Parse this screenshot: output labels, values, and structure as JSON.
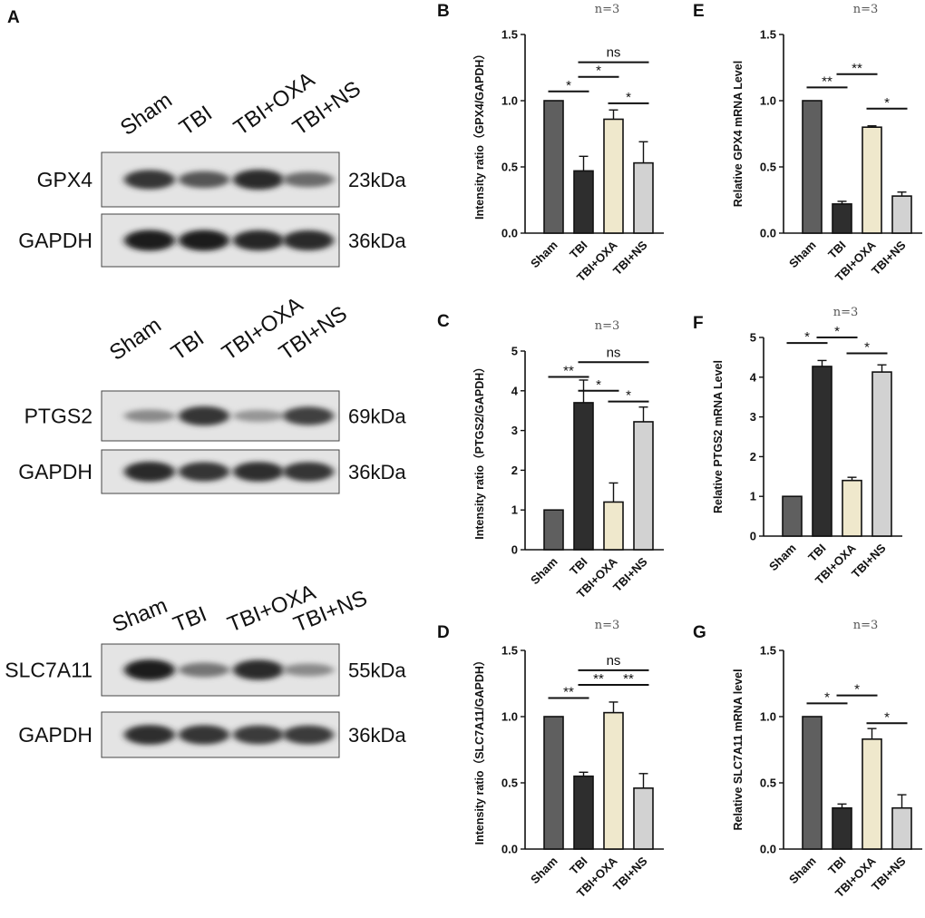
{
  "panel_letters": [
    "A",
    "B",
    "C",
    "D",
    "E",
    "F",
    "G"
  ],
  "blots": [
    {
      "lanes": [
        "Sham",
        "TBI",
        "TBI+OXA",
        "TBI+NS"
      ],
      "bands": [
        {
          "name": "GPX4",
          "kda": "23kDa",
          "intensity": [
            0.85,
            0.7,
            0.9,
            0.6
          ]
        },
        {
          "name": "GAPDH",
          "kda": "36kDa",
          "intensity": [
            0.95,
            0.95,
            0.92,
            0.9
          ]
        }
      ]
    },
    {
      "lanes": [
        "Sham",
        "TBI",
        "TBI+OXA",
        "TBI+NS"
      ],
      "bands": [
        {
          "name": "PTGS2",
          "kda": "69kDa",
          "intensity": [
            0.45,
            0.85,
            0.4,
            0.8
          ]
        },
        {
          "name": "GAPDH",
          "kda": "36kDa",
          "intensity": [
            0.9,
            0.85,
            0.88,
            0.85
          ]
        }
      ]
    },
    {
      "lanes": [
        "Sham",
        "TBI",
        "TBI+OXA",
        "TBI+NS"
      ],
      "bands": [
        {
          "name": "SLC7A11",
          "kda": "55kDa",
          "intensity": [
            0.95,
            0.55,
            0.9,
            0.45
          ]
        },
        {
          "name": "GAPDH",
          "kda": "36kDa",
          "intensity": [
            0.88,
            0.85,
            0.82,
            0.82
          ]
        }
      ]
    }
  ],
  "chart_data": [
    {
      "panel": "B",
      "type": "bar",
      "title": "n=3",
      "categories": [
        "Sham",
        "TBI",
        "TBI+OXA",
        "TBI+NS"
      ],
      "values": [
        1.0,
        0.47,
        0.86,
        0.53
      ],
      "errors": [
        0,
        0.11,
        0.07,
        0.16
      ],
      "ylabel": "Intensity ratio（GPX4/GAPDH）",
      "ylim": [
        0,
        1.5
      ],
      "yticks": [
        "0.0",
        "0.5",
        "1.0",
        "1.5"
      ],
      "significance": [
        {
          "from": 0,
          "to": 1,
          "label": "*",
          "y": 1.07
        },
        {
          "from": 1,
          "to": 2,
          "label": "*",
          "y": 1.18
        },
        {
          "from": 1,
          "to": 3,
          "label": "ns",
          "y": 1.29
        },
        {
          "from": 2,
          "to": 3,
          "label": "*",
          "y": 0.98
        }
      ]
    },
    {
      "panel": "C",
      "type": "bar",
      "title": "n=3",
      "categories": [
        "Sham",
        "TBI",
        "TBI+OXA",
        "TBI+NS"
      ],
      "values": [
        1.0,
        3.7,
        1.2,
        3.22
      ],
      "errors": [
        0,
        0.57,
        0.48,
        0.37
      ],
      "ylabel": "Intensity ratio（PTGS2/GAPDH）",
      "ylim": [
        0,
        5
      ],
      "yticks": [
        "0",
        "1",
        "2",
        "3",
        "4",
        "5"
      ],
      "significance": [
        {
          "from": 0,
          "to": 1,
          "label": "**",
          "y": 4.35
        },
        {
          "from": 1,
          "to": 2,
          "label": "*",
          "y": 4.0
        },
        {
          "from": 1,
          "to": 3,
          "label": "ns",
          "y": 4.72
        },
        {
          "from": 2,
          "to": 3,
          "label": "*",
          "y": 3.73
        }
      ]
    },
    {
      "panel": "D",
      "type": "bar",
      "title": "n=3",
      "categories": [
        "Sham",
        "TBI",
        "TBI+OXA",
        "TBI+NS"
      ],
      "values": [
        1.0,
        0.55,
        1.03,
        0.46
      ],
      "errors": [
        0,
        0.03,
        0.08,
        0.11
      ],
      "ylabel": "Intensity ratio（SLC7A11/GAPDH）",
      "ylim": [
        0,
        1.5
      ],
      "yticks": [
        "0.0",
        "0.5",
        "1.0",
        "1.5"
      ],
      "significance": [
        {
          "from": 0,
          "to": 1,
          "label": "**",
          "y": 1.14
        },
        {
          "from": 1,
          "to": 2,
          "label": "**",
          "y": 1.24
        },
        {
          "from": 1,
          "to": 3,
          "label": "ns",
          "y": 1.35
        },
        {
          "from": 2,
          "to": 3,
          "label": "**",
          "y": 1.24
        }
      ]
    },
    {
      "panel": "E",
      "type": "bar",
      "title": "n=3",
      "categories": [
        "Sham",
        "TBI",
        "TBI+OXA",
        "TBI+NS"
      ],
      "values": [
        1.0,
        0.22,
        0.8,
        0.28
      ],
      "errors": [
        0,
        0.02,
        0.01,
        0.03
      ],
      "ylabel": "Relative GPX4 mRNA Level",
      "ylim": [
        0,
        1.5
      ],
      "yticks": [
        "0.0",
        "0.5",
        "1.0",
        "1.5"
      ],
      "significance": [
        {
          "from": 0,
          "to": 1,
          "label": "**",
          "y": 1.1
        },
        {
          "from": 1,
          "to": 2,
          "label": "**",
          "y": 1.2
        },
        {
          "from": 2,
          "to": 3,
          "label": "*",
          "y": 0.94
        }
      ]
    },
    {
      "panel": "F",
      "type": "bar",
      "title": "n=3",
      "categories": [
        "Sham",
        "TBI",
        "TBI+OXA",
        "TBI+NS"
      ],
      "values": [
        1.0,
        4.27,
        1.4,
        4.13
      ],
      "errors": [
        0,
        0.15,
        0.08,
        0.18
      ],
      "ylabel": "Relative PTGS2 mRNA Level",
      "ylim": [
        0,
        5
      ],
      "yticks": [
        "0",
        "1",
        "2",
        "3",
        "4",
        "5"
      ],
      "significance": [
        {
          "from": 0,
          "to": 1,
          "label": "*",
          "y": 4.86
        },
        {
          "from": 1,
          "to": 2,
          "label": "*",
          "y": 5.0
        },
        {
          "from": 2,
          "to": 3,
          "label": "*",
          "y": 4.6
        }
      ]
    },
    {
      "panel": "G",
      "type": "bar",
      "title": "n=3",
      "categories": [
        "Sham",
        "TBI",
        "TBI+OXA",
        "TBI+NS"
      ],
      "values": [
        1.0,
        0.31,
        0.83,
        0.31
      ],
      "errors": [
        0,
        0.03,
        0.08,
        0.1
      ],
      "ylabel": "Relative SLC7A11  mRNA level",
      "ylim": [
        0,
        1.5
      ],
      "yticks": [
        "0.0",
        "0.5",
        "1.0",
        "1.5"
      ],
      "significance": [
        {
          "from": 0,
          "to": 1,
          "label": "*",
          "y": 1.1
        },
        {
          "from": 1,
          "to": 2,
          "label": "*",
          "y": 1.16
        },
        {
          "from": 2,
          "to": 3,
          "label": "*",
          "y": 0.95
        }
      ]
    }
  ],
  "colors": {
    "bar_fills": [
      "#5f5f5f",
      "#2e2e2e",
      "#efe8cc",
      "#d2d2d2"
    ],
    "axis": "#111111"
  }
}
